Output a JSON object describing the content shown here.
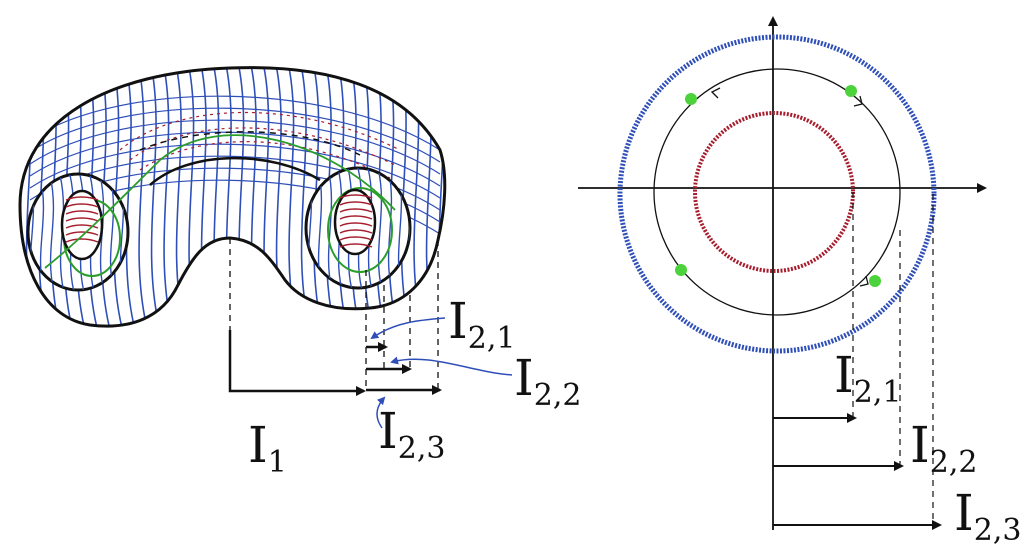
{
  "colors": {
    "ink": "#111111",
    "blue": "#2f4fb8",
    "red": "#a61e2e",
    "green": "#2a9d2a",
    "green_dot": "#4cd23a"
  },
  "labels": {
    "torus": {
      "i1": {
        "main": "I",
        "sub": "1"
      },
      "i21": {
        "main": "I",
        "sub": "2,1"
      },
      "i22": {
        "main": "I",
        "sub": "2,2"
      },
      "i23": {
        "main": "I",
        "sub": "2,3"
      }
    },
    "section": {
      "i21": {
        "main": "I",
        "sub": "2,1"
      },
      "i22": {
        "main": "I",
        "sub": "2,2"
      },
      "i23": {
        "main": "I",
        "sub": "2,3"
      }
    }
  }
}
